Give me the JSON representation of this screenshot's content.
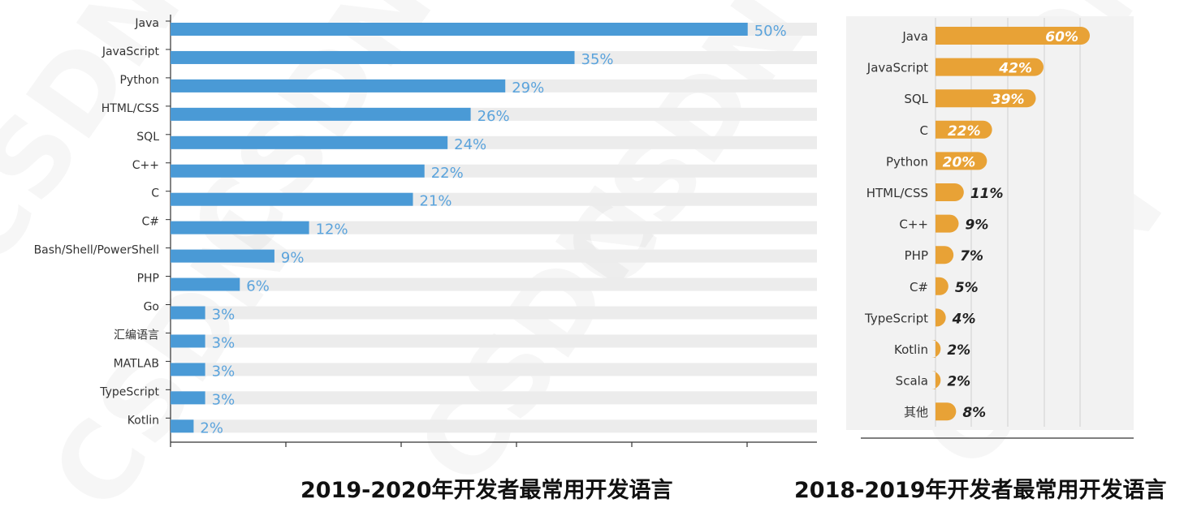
{
  "chart_data": [
    {
      "type": "bar",
      "orientation": "horizontal",
      "title": "2019-2020年开发者最常用开发语言",
      "categories": [
        "Java",
        "JavaScript",
        "Python",
        "HTML/CSS",
        "SQL",
        "C++",
        "C",
        "C#",
        "Bash/Shell/PowerShell",
        "PHP",
        "Go",
        "汇编语言",
        "MATLAB",
        "TypeScript",
        "Kotlin"
      ],
      "values": [
        50,
        35,
        29,
        26,
        24,
        22,
        21,
        12,
        9,
        6,
        3,
        3,
        3,
        3,
        2
      ],
      "labels": [
        "50%",
        "35%",
        "29%",
        "26%",
        "24%",
        "22%",
        "21%",
        "12%",
        "9%",
        "6%",
        "3%",
        "3%",
        "3%",
        "3%",
        "2%"
      ],
      "xlim": [
        0,
        56
      ],
      "bar_color": "#4a9ad6",
      "track_color": "#ececec",
      "label_color": "#5aa3dc"
    },
    {
      "type": "bar",
      "orientation": "horizontal",
      "title": "2018-2019年开发者最常用开发语言",
      "categories": [
        "Java",
        "JavaScript",
        "SQL",
        "C",
        "Python",
        "HTML/CSS",
        "C++",
        "PHP",
        "C#",
        "TypeScript",
        "Kotlin",
        "Scala",
        "其他"
      ],
      "values": [
        60,
        42,
        39,
        22,
        20,
        11,
        9,
        7,
        5,
        4,
        2,
        2,
        8
      ],
      "labels": [
        "60%",
        "42%",
        "39%",
        "22%",
        "20%",
        "11%",
        "9%",
        "7%",
        "5%",
        "4%",
        "2%",
        "2%",
        "8%"
      ],
      "xlim": [
        0,
        60
      ],
      "bar_color": "#e8a236",
      "inside_label_color": "#ffffff",
      "outside_label_color": "#222222"
    }
  ],
  "watermark": "CSDN"
}
